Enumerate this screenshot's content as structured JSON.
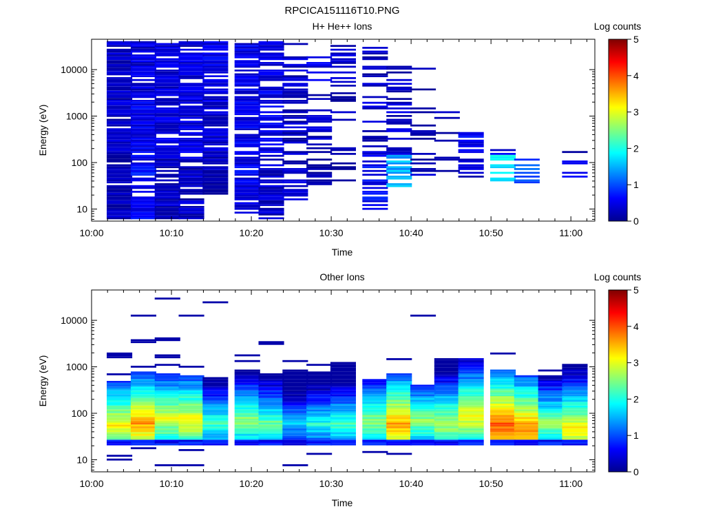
{
  "figure_title": "RPCICA151116T10.PNG",
  "chart_data": [
    {
      "type": "heatmap",
      "title": "H+ He++ Ions",
      "xlabel": "Time",
      "ylabel": "Energy (eV)",
      "x_ticks": [
        "10:00",
        "10:10",
        "10:20",
        "10:30",
        "10:40",
        "10:50",
        "11:00"
      ],
      "y_ticks": [
        "10",
        "100",
        "1000",
        "10000"
      ],
      "xlim": [
        "10:00",
        "11:03"
      ],
      "ylim": [
        5.5,
        45000
      ],
      "y_scale": "log",
      "colorbar": {
        "label": "Log counts",
        "ticks": [
          "0",
          "1",
          "2",
          "3",
          "4",
          "5"
        ],
        "range": [
          0,
          5
        ]
      },
      "time_bins": [
        "10:01.6",
        "10:04.8",
        "10:08.0",
        "10:11.2",
        "10:14.4",
        "10:17.6",
        "10:20.8",
        "10:24.0",
        "10:27.2",
        "10:30.4",
        "10:33.6",
        "10:36.8",
        "10:40.0",
        "10:43.2",
        "10:46.4",
        "10:49.6",
        "10:52.8",
        "10:56.0",
        "10:59.2",
        "11:02.4"
      ],
      "columns": [
        {
          "time": "10:02",
          "e_min": 6,
          "e_max": 40000,
          "level_low": 0.2,
          "level_mid": 0.3,
          "level_high": 0.3,
          "density": 0.92
        },
        {
          "time": "10:05",
          "e_min": 6,
          "e_max": 40000,
          "level_low": 0.6,
          "level_mid": 0.5,
          "level_high": 0.4,
          "density": 0.88
        },
        {
          "time": "10:08",
          "e_min": 6,
          "e_max": 38000,
          "level_low": 0.3,
          "level_mid": 0.4,
          "level_high": 0.4,
          "density": 0.85
        },
        {
          "time": "10:11",
          "e_min": 6,
          "e_max": 40000,
          "level_low": 0.3,
          "level_mid": 0.4,
          "level_high": 0.4,
          "density": 0.85
        },
        {
          "time": "10:14",
          "e_min": 20,
          "e_max": 40000,
          "level_low": 0.2,
          "level_mid": 0.4,
          "level_high": 0.5,
          "density": 0.85
        },
        {
          "time": "10:18",
          "e_min": 8,
          "e_max": 40000,
          "level_low": 0.5,
          "level_mid": 0.5,
          "level_high": 0.5,
          "density": 0.82
        },
        {
          "time": "10:21",
          "e_min": 6,
          "e_max": 40000,
          "level_low": 0.3,
          "level_mid": 0.5,
          "level_high": 0.5,
          "density": 0.7
        },
        {
          "time": "10:24",
          "e_min": 15,
          "e_max": 38000,
          "level_low": 0.3,
          "level_mid": 0.3,
          "level_high": 0.3,
          "density": 0.55
        },
        {
          "time": "10:27",
          "e_min": 30,
          "e_max": 20000,
          "level_low": 0.2,
          "level_mid": 0.3,
          "level_high": 0.4,
          "density": 0.45
        },
        {
          "time": "10:30",
          "e_min": 30,
          "e_max": 35000,
          "level_low": 0.2,
          "level_mid": 0.2,
          "level_high": 0.3,
          "density": 0.35
        },
        {
          "time": "10:34",
          "e_min": 10,
          "e_max": 30000,
          "level_low": 0.6,
          "level_mid": 0.3,
          "level_high": 0.3,
          "density": 0.4
        },
        {
          "time": "10:37",
          "e_min": 30,
          "e_max": 15000,
          "level_low": 1.5,
          "level_mid": 0.3,
          "level_high": 0.3,
          "density": 0.55
        },
        {
          "time": "10:40",
          "e_min": 40,
          "e_max": 12000,
          "level_low": 0.2,
          "level_mid": 0.2,
          "level_high": 0.2,
          "density": 0.25
        },
        {
          "time": "10:43",
          "e_min": 30,
          "e_max": 2000,
          "level_low": 0.3,
          "level_mid": 0.2,
          "level_high": 0.2,
          "density": 0.25
        },
        {
          "time": "10:46",
          "e_min": 40,
          "e_max": 600,
          "level_low": 0.4,
          "level_mid": 0.5,
          "level_high": 0.2,
          "density": 0.45
        },
        {
          "time": "10:50",
          "e_min": 40,
          "e_max": 220,
          "level_low": 1.8,
          "level_mid": 0.5,
          "level_high": 0.3,
          "density": 0.5
        },
        {
          "time": "10:53",
          "e_min": 35,
          "e_max": 120,
          "level_low": 1.0,
          "level_mid": 0.5,
          "level_high": 0.3,
          "density": 0.6
        },
        {
          "time": "10:56",
          "e_min": 50,
          "e_max": 130,
          "level_low": 0.2,
          "level_mid": 0.2,
          "level_high": 0.2,
          "density": 0.35
        },
        {
          "time": "10:59",
          "e_min": 30,
          "e_max": 190,
          "level_low": 0.5,
          "level_mid": 0.3,
          "level_high": 0.2,
          "density": 0.3
        }
      ]
    },
    {
      "type": "heatmap",
      "title": "Other Ions",
      "xlabel": "Time",
      "ylabel": "Energy (eV)",
      "x_ticks": [
        "10:00",
        "10:10",
        "10:20",
        "10:30",
        "10:40",
        "10:50",
        "11:00"
      ],
      "y_ticks": [
        "10",
        "100",
        "1000",
        "10000"
      ],
      "xlim": [
        "10:00",
        "11:03"
      ],
      "ylim": [
        5.5,
        45000
      ],
      "y_scale": "log",
      "colorbar": {
        "label": "Log counts",
        "ticks": [
          "0",
          "1",
          "2",
          "3",
          "4",
          "5"
        ],
        "range": [
          0,
          5
        ]
      },
      "time_bins": [
        "10:01.6",
        "10:04.8",
        "10:08.0",
        "10:11.2",
        "10:14.4",
        "10:17.6",
        "10:20.8",
        "10:24.0",
        "10:27.2",
        "10:30.4",
        "10:33.6",
        "10:36.8",
        "10:40.0",
        "10:43.2",
        "10:46.4",
        "10:49.6",
        "10:52.8",
        "10:56.0",
        "10:59.2",
        "11:02.4"
      ],
      "columns": [
        {
          "time": "10:02",
          "band_min": 20,
          "band_max": 500,
          "peak_energy": 55,
          "peak_level": 3.2,
          "sparse": [
            10,
            12,
            2000,
            1700,
            700
          ]
        },
        {
          "time": "10:05",
          "band_min": 20,
          "band_max": 800,
          "peak_energy": 60,
          "peak_level": 3.6,
          "sparse": [
            18,
            13000,
            3600,
            1000
          ]
        },
        {
          "time": "10:08",
          "band_min": 20,
          "band_max": 700,
          "peak_energy": 80,
          "peak_level": 3.0,
          "sparse": [
            8,
            30000,
            4000,
            1700,
            1100
          ]
        },
        {
          "time": "10:11",
          "band_min": 20,
          "band_max": 650,
          "peak_energy": 70,
          "peak_level": 3.2,
          "sparse": [
            16,
            8,
            13000,
            1000
          ]
        },
        {
          "time": "10:14",
          "band_min": 20,
          "band_max": 600,
          "peak_energy": 60,
          "peak_level": 2.2,
          "sparse": [
            24000
          ]
        },
        {
          "time": "10:18",
          "band_min": 20,
          "band_max": 900,
          "peak_energy": 70,
          "peak_level": 2.6,
          "sparse": [
            1800,
            1300
          ]
        },
        {
          "time": "10:21",
          "band_min": 20,
          "band_max": 700,
          "peak_energy": 60,
          "peak_level": 2.4,
          "sparse": [
            3300
          ]
        },
        {
          "time": "10:24",
          "band_min": 20,
          "band_max": 900,
          "peak_energy": 60,
          "peak_level": 1.6,
          "sparse": [
            8,
            1300
          ]
        },
        {
          "time": "10:27",
          "band_min": 20,
          "band_max": 800,
          "peak_energy": 60,
          "peak_level": 2.0,
          "sparse": [
            14,
            1100
          ]
        },
        {
          "time": "10:30",
          "band_min": 20,
          "band_max": 1300,
          "peak_energy": 60,
          "peak_level": 2.2,
          "sparse": []
        },
        {
          "time": "10:34",
          "band_min": 20,
          "band_max": 550,
          "peak_energy": 70,
          "peak_level": 2.6,
          "sparse": [
            15
          ]
        },
        {
          "time": "10:37",
          "band_min": 20,
          "band_max": 700,
          "peak_energy": 60,
          "peak_level": 3.6,
          "sparse": [
            14,
            1500
          ]
        },
        {
          "time": "10:40",
          "band_min": 20,
          "band_max": 400,
          "peak_energy": 70,
          "peak_level": 2.6,
          "sparse": [
            13000
          ]
        },
        {
          "time": "10:43",
          "band_min": 20,
          "band_max": 1500,
          "peak_energy": 60,
          "peak_level": 2.8,
          "sparse": []
        },
        {
          "time": "10:46",
          "band_min": 20,
          "band_max": 1500,
          "peak_energy": 90,
          "peak_level": 3.2,
          "sparse": []
        },
        {
          "time": "10:50",
          "band_min": 20,
          "band_max": 900,
          "peak_energy": 55,
          "peak_level": 4.0,
          "sparse": [
            1900
          ]
        },
        {
          "time": "10:53",
          "band_min": 20,
          "band_max": 650,
          "peak_energy": 45,
          "peak_level": 3.8,
          "sparse": []
        },
        {
          "time": "10:56",
          "band_min": 20,
          "band_max": 650,
          "peak_energy": 60,
          "peak_level": 2.6,
          "sparse": [
            850
          ]
        },
        {
          "time": "10:59",
          "band_min": 20,
          "band_max": 1200,
          "peak_energy": 45,
          "peak_level": 3.2,
          "sparse": []
        }
      ]
    }
  ]
}
